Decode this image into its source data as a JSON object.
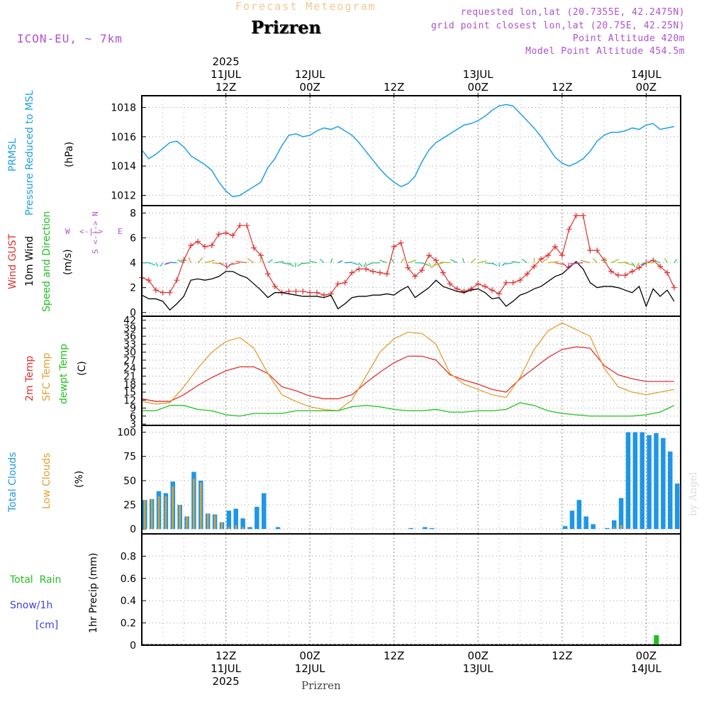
{
  "header": {
    "top_title": "Forecast Meteogram",
    "city": "Prizren",
    "model": "ICON-EU, ~ 7km",
    "requested": "requested lon,lat (20.7355E, 42.2475N)",
    "gridpoint": "grid point closest lon,lat (20.75E, 42.25N)",
    "point_alt": "Point Altitude 420m",
    "model_alt": "Model Point Altitude 454.5m"
  },
  "footer": {
    "city": "Prizren",
    "watermark": "by Angel"
  },
  "time_axis": {
    "top": [
      {
        "h": 12,
        "lines": [
          "2025",
          "11JUL",
          "12Z"
        ]
      },
      {
        "h": 24,
        "lines": [
          "12JUL",
          "00Z"
        ]
      },
      {
        "h": 36,
        "lines": [
          "12Z"
        ]
      },
      {
        "h": 48,
        "lines": [
          "13JUL",
          "00Z"
        ]
      },
      {
        "h": 60,
        "lines": [
          "12Z"
        ]
      },
      {
        "h": 72,
        "lines": [
          "14JUL",
          "00Z"
        ]
      }
    ],
    "bottom": [
      {
        "h": 12,
        "lines": [
          "12Z",
          "11JUL",
          "2025"
        ]
      },
      {
        "h": 24,
        "lines": [
          "00Z",
          "12JUL"
        ]
      },
      {
        "h": 36,
        "lines": [
          "12Z"
        ]
      },
      {
        "h": 48,
        "lines": [
          "00Z",
          "13JUL"
        ]
      },
      {
        "h": 60,
        "lines": [
          "12Z"
        ]
      },
      {
        "h": 72,
        "lines": [
          "00Z",
          "14JUL"
        ]
      }
    ]
  },
  "panel_labels": {
    "pressure": {
      "a": "PRMSL",
      "b": "Pressure Reduced to MSL",
      "unit": "(hPa)"
    },
    "wind": {
      "a": "Wind GUST",
      "b": "10m Wind",
      "c": "Speed and Direction",
      "unit": "(m/s)",
      "compass_n": "N",
      "compass_s": "S",
      "compass_w": "W",
      "compass_e": "E",
      "compass_arrow": "<-|->"
    },
    "temp": {
      "a": "2m Temp",
      "b": "SFC Temp",
      "c": "dewpt Temp",
      "unit": "(C)"
    },
    "clouds": {
      "a": "Total Clouds",
      "b": "Low Clouds",
      "unit": "(%)"
    },
    "precip": {
      "a": "Total",
      "a2": "Rain",
      "b": "Snow/1h",
      "b2": "[cm]",
      "unit": "1hr Precip (mm)"
    }
  },
  "colors": {
    "pressure": "#1ea0e6",
    "gust": "#e03030",
    "wind": "#000000",
    "temp2m": "#e03030",
    "tempsfc": "#e0a030",
    "dewpt": "#20c020",
    "total_clouds": "#1e96e6",
    "low_clouds": "#e0a030",
    "rain": "#20c020",
    "snow": "#4040e0",
    "label_purple": "#b050d0"
  },
  "chart_data": [
    {
      "type": "line",
      "title": "PRMSL",
      "ylabel": "(hPa)",
      "ylim": [
        1011.3,
        1018.8
      ],
      "yticks": [
        1012,
        1014,
        1016,
        1018
      ],
      "x_hours": [
        0,
        1,
        2,
        3,
        4,
        5,
        6,
        7,
        8,
        9,
        10,
        11,
        12,
        13,
        14,
        15,
        16,
        17,
        18,
        19,
        20,
        21,
        22,
        23,
        24,
        25,
        26,
        27,
        28,
        29,
        30,
        31,
        32,
        33,
        34,
        35,
        36,
        37,
        38,
        39,
        40,
        41,
        42,
        43,
        44,
        45,
        46,
        47,
        48,
        49,
        50,
        51,
        52,
        53,
        54,
        55,
        56,
        57,
        58,
        59,
        60,
        61,
        62,
        63,
        64,
        65,
        66,
        67,
        68,
        69,
        70,
        71,
        72,
        73,
        74,
        75,
        76
      ],
      "series": [
        {
          "name": "PRMSL",
          "values": [
            1015.1,
            1014.5,
            1014.8,
            1015.2,
            1015.6,
            1015.7,
            1015.3,
            1014.7,
            1014.4,
            1014.1,
            1013.7,
            1012.9,
            1012.3,
            1011.9,
            1012.0,
            1012.3,
            1012.6,
            1012.9,
            1013.9,
            1014.5,
            1015.4,
            1016.1,
            1016.2,
            1016.0,
            1016.1,
            1016.4,
            1016.6,
            1016.5,
            1016.7,
            1016.4,
            1016.1,
            1015.6,
            1015.0,
            1014.4,
            1013.8,
            1013.3,
            1012.9,
            1012.6,
            1012.8,
            1013.3,
            1014.3,
            1015.1,
            1015.6,
            1015.9,
            1016.2,
            1016.5,
            1016.8,
            1016.9,
            1017.1,
            1017.4,
            1017.8,
            1018.1,
            1018.2,
            1018.1,
            1017.6,
            1017.1,
            1016.6,
            1016.0,
            1015.3,
            1014.6,
            1014.2,
            1014.0,
            1014.2,
            1014.5,
            1015.0,
            1015.7,
            1016.1,
            1016.3,
            1016.3,
            1016.4,
            1016.6,
            1016.5,
            1016.8,
            1016.9,
            1016.5,
            1016.6,
            1016.7
          ]
        }
      ]
    },
    {
      "type": "line",
      "title": "Wind",
      "ylabel": "(m/s)",
      "ylim": [
        -0.3,
        8.6
      ],
      "yticks": [
        0,
        2,
        4,
        6,
        8
      ],
      "x_hours": [
        0,
        1,
        2,
        3,
        4,
        5,
        6,
        7,
        8,
        9,
        10,
        11,
        12,
        13,
        14,
        15,
        16,
        17,
        18,
        19,
        20,
        21,
        22,
        23,
        24,
        25,
        26,
        27,
        28,
        29,
        30,
        31,
        32,
        33,
        34,
        35,
        36,
        37,
        38,
        39,
        40,
        41,
        42,
        43,
        44,
        45,
        46,
        47,
        48,
        49,
        50,
        51,
        52,
        53,
        54,
        55,
        56,
        57,
        58,
        59,
        60,
        61,
        62,
        63,
        64,
        65,
        66,
        67,
        68,
        69,
        70,
        71,
        72,
        73,
        74,
        75,
        76
      ],
      "series": [
        {
          "name": "Wind GUST",
          "values": [
            2.8,
            2.6,
            1.8,
            1.6,
            1.6,
            2.6,
            4.2,
            5.4,
            5.7,
            5.3,
            5.4,
            6.3,
            6.4,
            6.2,
            7.0,
            7.0,
            5.2,
            4.6,
            3.1,
            2.1,
            1.6,
            1.7,
            1.7,
            1.7,
            1.6,
            1.6,
            1.4,
            1.5,
            2.3,
            2.4,
            3.2,
            3.5,
            3.5,
            3.3,
            3.2,
            3.1,
            5.3,
            5.6,
            3.6,
            2.9,
            3.4,
            4.6,
            4.2,
            3.2,
            2.3,
            1.9,
            1.7,
            1.9,
            2.3,
            2.1,
            1.8,
            1.5,
            2.4,
            2.4,
            2.6,
            3.1,
            3.7,
            4.3,
            4.6,
            5.3,
            4.6,
            6.7,
            7.8,
            7.8,
            5.0,
            5.0,
            4.2,
            3.3,
            3.0,
            3.0,
            3.3,
            3.6,
            4.0,
            4.2,
            3.7,
            3.2,
            2.0
          ]
        },
        {
          "name": "10m Wind",
          "values": [
            1.4,
            1.1,
            1.1,
            0.9,
            0.2,
            0.7,
            1.3,
            2.6,
            2.7,
            2.6,
            2.7,
            2.9,
            3.3,
            3.3,
            3.0,
            2.8,
            2.3,
            1.8,
            1.2,
            1.6,
            1.6,
            1.5,
            1.4,
            1.3,
            1.3,
            1.3,
            1.2,
            1.4,
            0.3,
            0.7,
            1.2,
            1.3,
            1.3,
            1.4,
            1.4,
            1.5,
            1.4,
            1.8,
            2.1,
            1.2,
            1.6,
            2.0,
            2.6,
            2.1,
            1.9,
            1.7,
            1.6,
            1.8,
            1.9,
            1.6,
            1.1,
            1.2,
            0.5,
            0.9,
            1.4,
            1.6,
            1.9,
            2.1,
            2.5,
            2.9,
            3.1,
            3.6,
            4.1,
            3.5,
            2.4,
            2.0,
            2.1,
            2.1,
            2.0,
            1.8,
            1.6,
            2.1,
            0.5,
            1.9,
            1.3,
            1.8,
            0.9
          ]
        }
      ]
    },
    {
      "type": "line",
      "title": "Temperature",
      "ylabel": "(C)",
      "ylim": [
        2.5,
        43.5
      ],
      "yticks": [
        3,
        6,
        9,
        12,
        15,
        18,
        21,
        24,
        27,
        30,
        33,
        36,
        39,
        42
      ],
      "x_hours": [
        0,
        2,
        4,
        6,
        8,
        10,
        12,
        14,
        16,
        18,
        20,
        22,
        24,
        26,
        28,
        30,
        32,
        34,
        36,
        38,
        40,
        42,
        44,
        46,
        48,
        50,
        52,
        54,
        56,
        58,
        60,
        62,
        64,
        66,
        68,
        70,
        72,
        74,
        76
      ],
      "series": [
        {
          "name": "2m Temp",
          "values": [
            12.5,
            11.5,
            11.5,
            14,
            17.5,
            20.5,
            23,
            24.5,
            24.5,
            22,
            17,
            15.5,
            13.5,
            12.5,
            12.5,
            14,
            18.5,
            22.5,
            26,
            28.5,
            28.5,
            27,
            21.5,
            19.5,
            18,
            16,
            15,
            20,
            24,
            28,
            31,
            32,
            31.5,
            25,
            21.5,
            20,
            19,
            19,
            19
          ]
        },
        {
          "name": "SFC Temp",
          "values": [
            11.5,
            10.5,
            11,
            17,
            24,
            30,
            34,
            35.5,
            31.5,
            22,
            14,
            11.5,
            9.5,
            8.5,
            8,
            12,
            21,
            30,
            35,
            37.5,
            37,
            33,
            22,
            18,
            16,
            14,
            13,
            20.5,
            31,
            38,
            41,
            38.5,
            36,
            24,
            17,
            15,
            14,
            15,
            16
          ]
        },
        {
          "name": "dewpt Temp",
          "values": [
            8,
            8,
            10,
            10,
            8.5,
            8,
            6.5,
            6,
            7,
            7,
            7,
            8,
            8,
            8,
            8,
            9.5,
            10,
            9.5,
            8.5,
            8,
            8,
            8.5,
            7.5,
            7.5,
            8,
            8,
            8.5,
            11,
            10,
            8,
            7,
            6.5,
            6,
            6,
            6,
            6,
            6.5,
            7.5,
            10
          ]
        }
      ]
    },
    {
      "type": "bar",
      "title": "Clouds",
      "ylabel": "(%)",
      "ylim": [
        -5,
        107
      ],
      "yticks": [
        0,
        25,
        50,
        75,
        100
      ],
      "x_hours": [
        0,
        1,
        2,
        3,
        4,
        5,
        6,
        7,
        8,
        9,
        10,
        11,
        12,
        13,
        14,
        15,
        16,
        17,
        18,
        19,
        20,
        21,
        22,
        23,
        24,
        25,
        26,
        27,
        28,
        29,
        30,
        31,
        32,
        33,
        34,
        35,
        36,
        37,
        38,
        39,
        40,
        41,
        42,
        43,
        44,
        45,
        46,
        47,
        48,
        49,
        50,
        51,
        52,
        53,
        54,
        55,
        56,
        57,
        58,
        59,
        60,
        61,
        62,
        63,
        64,
        65,
        66,
        67,
        68,
        69,
        70,
        71,
        72,
        73,
        74,
        75,
        76
      ],
      "series": [
        {
          "name": "Total Clouds",
          "values": [
            30,
            31,
            39,
            37,
            49,
            25,
            13,
            59,
            50,
            16,
            15,
            7,
            19,
            21,
            11,
            2,
            23,
            37,
            0,
            2,
            0,
            0,
            0,
            0,
            0,
            0,
            0,
            0,
            0,
            0,
            0,
            0,
            0,
            0,
            0,
            0,
            0,
            0,
            1,
            0,
            2,
            1,
            0,
            0,
            0,
            0,
            0,
            0,
            0,
            0,
            0,
            0,
            0,
            0,
            0,
            0,
            0,
            0,
            0,
            0,
            3,
            19,
            30,
            13,
            5,
            0,
            1,
            9,
            32,
            100,
            100,
            100,
            97,
            99,
            94,
            80,
            47
          ]
        },
        {
          "name": "Low Clouds",
          "values": [
            30,
            31,
            34,
            34,
            44,
            25,
            13,
            52,
            48,
            16,
            14,
            7,
            2,
            4,
            2,
            0,
            0,
            0,
            0,
            0,
            0,
            0,
            0,
            0,
            0,
            0,
            0,
            0,
            0,
            0,
            0,
            0,
            0,
            0,
            0,
            0,
            0,
            0,
            0,
            0,
            0,
            0,
            0,
            0,
            0,
            0,
            0,
            0,
            0,
            0,
            0,
            0,
            0,
            0,
            0,
            0,
            0,
            0,
            0,
            0,
            0,
            0,
            0,
            0,
            0,
            0,
            0,
            2,
            4,
            1,
            0,
            0,
            0,
            0,
            0,
            0,
            0
          ]
        }
      ]
    },
    {
      "type": "bar",
      "title": "Precipitation",
      "ylabel": "1hr Precip (mm)",
      "ylim": [
        0,
        1.0
      ],
      "yticks": [
        0,
        0.2,
        0.4,
        0.6,
        0.8
      ],
      "x_hours": [
        73
      ],
      "series": [
        {
          "name": "Total Rain",
          "values": [
            0.09
          ]
        }
      ]
    }
  ]
}
